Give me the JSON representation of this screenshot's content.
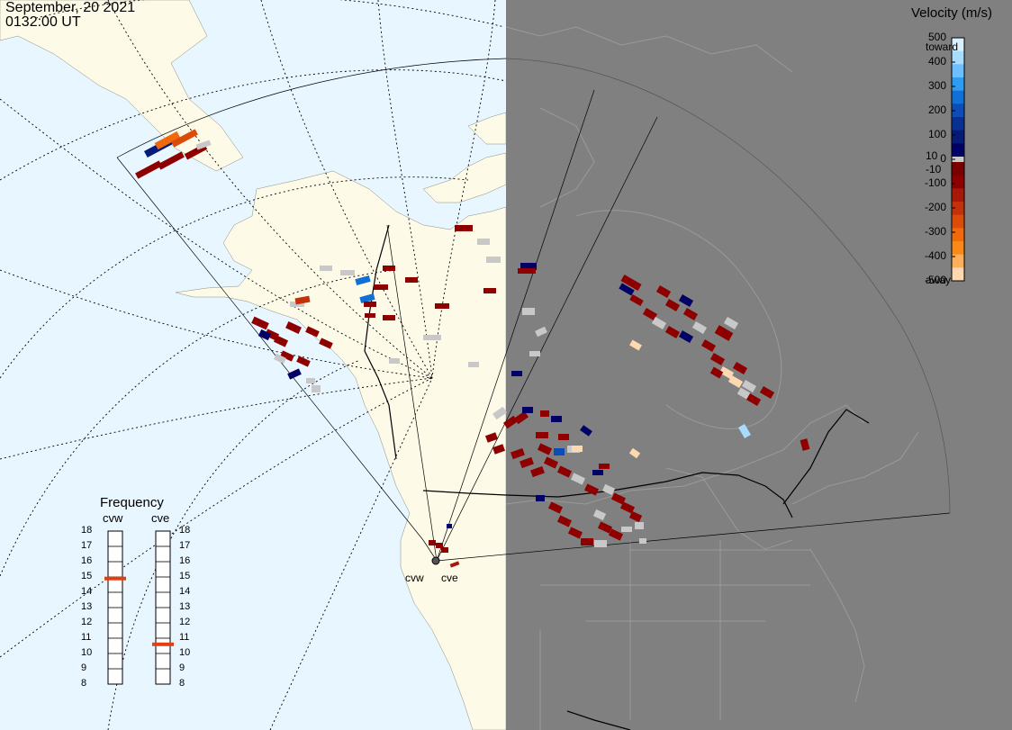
{
  "header": {
    "date": "September, 20 2021",
    "time": "0132:00 UT"
  },
  "legend": {
    "title": "Velocity (m/s)",
    "ticks": [
      "500",
      "400",
      "300",
      "200",
      "100",
      "0",
      "-100",
      "-200",
      "-300",
      "-400",
      "-500"
    ],
    "extra_ticks": [
      "10",
      "-10"
    ],
    "toward_label": "toward",
    "away_label": "away",
    "colors_toward": [
      "#d8f0ff",
      "#a8dcff",
      "#6cc0ff",
      "#2e9cf0",
      "#1070d8",
      "#0a4cb8",
      "#083090",
      "#061a78",
      "#000066"
    ],
    "colors_away": [
      "#7a0000",
      "#8e0000",
      "#a81808",
      "#c43008",
      "#dc4c08",
      "#f06a0c",
      "#fa8a18",
      "#fcae58",
      "#fed8b0"
    ],
    "near_zero_color": "#c8c8c8"
  },
  "frequency": {
    "title": "Frequency",
    "radars": [
      {
        "name": "cvw",
        "value": 14.9,
        "bar_color": "#e04010"
      },
      {
        "name": "cve",
        "value": 10.6,
        "bar_color": "#e04010"
      }
    ],
    "scale": [
      "18",
      "17",
      "16",
      "15",
      "14",
      "13",
      "12",
      "11",
      "10",
      "9",
      "8"
    ]
  },
  "sites": [
    {
      "name": "cvw"
    },
    {
      "name": "cve"
    }
  ],
  "map": {
    "ocean_color": "#e8f6ff",
    "land_color": "#fdfbe8",
    "night_color": "#808080",
    "scatter_gray": "#c8c8c8"
  }
}
